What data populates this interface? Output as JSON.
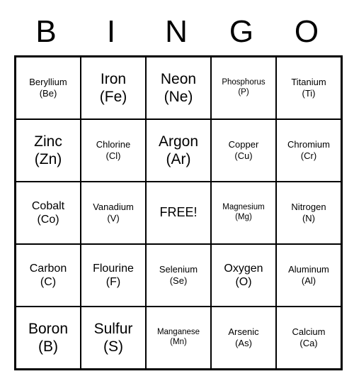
{
  "type": "bingo-card",
  "header": {
    "letters": [
      "B",
      "I",
      "N",
      "G",
      "O"
    ],
    "font_size": 44,
    "color": "#000000"
  },
  "grid": {
    "rows": 5,
    "cols": 5,
    "border_color": "#000000",
    "background_color": "#ffffff",
    "cells": [
      {
        "name": "Beryllium",
        "symbol": "(Be)",
        "size": "small"
      },
      {
        "name": "Iron",
        "symbol": "(Fe)",
        "size": "large"
      },
      {
        "name": "Neon",
        "symbol": "(Ne)",
        "size": "large"
      },
      {
        "name": "Phosphorus",
        "symbol": "(P)",
        "size": "xsmall"
      },
      {
        "name": "Titanium",
        "symbol": "(Ti)",
        "size": "small"
      },
      {
        "name": "Zinc",
        "symbol": "(Zn)",
        "size": "large"
      },
      {
        "name": "Chlorine",
        "symbol": "(Cl)",
        "size": "small"
      },
      {
        "name": "Argon",
        "symbol": "(Ar)",
        "size": "large"
      },
      {
        "name": "Copper",
        "symbol": "(Cu)",
        "size": "small"
      },
      {
        "name": "Chromium",
        "symbol": "(Cr)",
        "size": "small"
      },
      {
        "name": "Cobalt",
        "symbol": "(Co)",
        "size": "medium"
      },
      {
        "name": "Vanadium",
        "symbol": "(V)",
        "size": "small"
      },
      {
        "free": true,
        "label": "FREE!"
      },
      {
        "name": "Magnesium",
        "symbol": "(Mg)",
        "size": "xsmall"
      },
      {
        "name": "Nitrogen",
        "symbol": "(N)",
        "size": "small"
      },
      {
        "name": "Carbon",
        "symbol": "(C)",
        "size": "medium"
      },
      {
        "name": "Flourine",
        "symbol": "(F)",
        "size": "medium"
      },
      {
        "name": "Selenium",
        "symbol": "(Se)",
        "size": "small"
      },
      {
        "name": "Oxygen",
        "symbol": "(O)",
        "size": "medium"
      },
      {
        "name": "Aluminum",
        "symbol": "(Al)",
        "size": "small"
      },
      {
        "name": "Boron",
        "symbol": "(B)",
        "size": "large"
      },
      {
        "name": "Sulfur",
        "symbol": "(S)",
        "size": "large"
      },
      {
        "name": "Manganese",
        "symbol": "(Mn)",
        "size": "xsmall"
      },
      {
        "name": "Arsenic",
        "symbol": "(As)",
        "size": "small"
      },
      {
        "name": "Calcium",
        "symbol": "(Ca)",
        "size": "small"
      }
    ]
  }
}
